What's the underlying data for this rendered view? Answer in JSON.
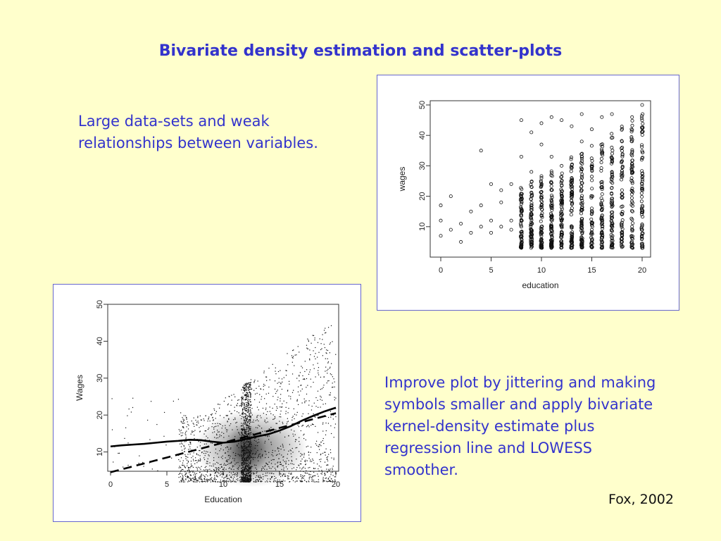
{
  "slide": {
    "title": "Bivariate density estimation and scatter-plots",
    "bullet1": "Large data-sets and weak relationships between variables.",
    "bullet2": "Improve plot by jittering and making symbols smaller and apply bivariate kernel-density estimate plus regression line and LOWESS smoother.",
    "citation": "Fox, 2002"
  },
  "chart_data": [
    {
      "type": "scatter",
      "title": "",
      "xlabel": "education",
      "ylabel": "wages",
      "xlim": [
        0,
        20
      ],
      "ylim": [
        0,
        50
      ],
      "xticks": [
        0,
        5,
        10,
        15,
        20
      ],
      "yticks": [
        10,
        20,
        30,
        40,
        50
      ],
      "grid": false,
      "marker": "open-circle",
      "series": [
        {
          "x": [
            0,
            0,
            0,
            1,
            1,
            2,
            2,
            3,
            3,
            4,
            4,
            4,
            5,
            5,
            5,
            6,
            6,
            6,
            7,
            7,
            7,
            8,
            8,
            8,
            8,
            8,
            9,
            9,
            9,
            9,
            10,
            10,
            10,
            10,
            10,
            11,
            11,
            11,
            11,
            12,
            12,
            12,
            12,
            12,
            12,
            13,
            13,
            13,
            13,
            14,
            14,
            14,
            14,
            15,
            15,
            15,
            15,
            16,
            16,
            16,
            16,
            16,
            17,
            17,
            17,
            18,
            18,
            18,
            19,
            19,
            19,
            20,
            20,
            20,
            20
          ],
          "y": [
            7,
            12,
            17,
            9,
            20,
            5,
            11,
            8,
            15,
            35,
            10,
            17,
            12,
            8,
            24,
            18,
            10,
            22,
            12,
            24,
            9,
            45,
            10,
            20,
            33,
            7,
            14,
            41,
            28,
            9,
            10,
            37,
            26,
            17,
            44,
            13,
            33,
            22,
            46,
            8,
            45,
            30,
            18,
            12,
            4,
            10,
            26,
            43,
            6,
            12,
            38,
            22,
            47,
            9,
            29,
            42,
            16,
            12,
            46,
            24,
            34,
            8,
            11,
            28,
            47,
            14,
            38,
            22,
            10,
            30,
            46,
            9,
            50,
            24,
            4
          ]
        }
      ]
    },
    {
      "type": "scatter",
      "title": "",
      "xlabel": "Education",
      "ylabel": "Wages",
      "xlim": [
        0,
        20
      ],
      "ylim": [
        0,
        50
      ],
      "xticks": [
        0,
        5,
        10,
        15,
        20
      ],
      "yticks": [
        10,
        20,
        30,
        40,
        50
      ],
      "grid": false,
      "marker": "small-dot",
      "overlays": [
        "bivariate kernel-density estimate",
        "regression line",
        "LOWESS smoother"
      ],
      "series": [
        {
          "x": [
            0,
            1,
            2,
            3,
            4,
            5,
            6,
            7,
            8,
            9,
            10,
            11,
            12,
            13,
            14,
            15,
            16,
            17,
            18,
            19,
            20
          ],
          "y": [
            4.5,
            5.3,
            6.1,
            6.9,
            7.7,
            8.5,
            9.3,
            10.1,
            10.9,
            11.7,
            12.5,
            13.3,
            14.1,
            14.9,
            15.7,
            16.5,
            17.3,
            18.1,
            18.9,
            19.7,
            20.5
          ],
          "style": "dashed"
        },
        {
          "x": [
            0,
            1,
            2,
            3,
            4,
            5,
            6,
            7,
            8,
            9,
            10,
            11,
            12,
            13,
            14,
            15,
            16,
            17,
            18,
            19,
            20
          ],
          "y": [
            11.5,
            11.8,
            12.0,
            12.2,
            12.5,
            12.8,
            13.0,
            13.3,
            13.2,
            12.8,
            12.5,
            12.8,
            13.5,
            14.2,
            14.8,
            15.8,
            17.0,
            18.5,
            19.8,
            21.0,
            22.0
          ],
          "style": "solid"
        }
      ]
    }
  ]
}
